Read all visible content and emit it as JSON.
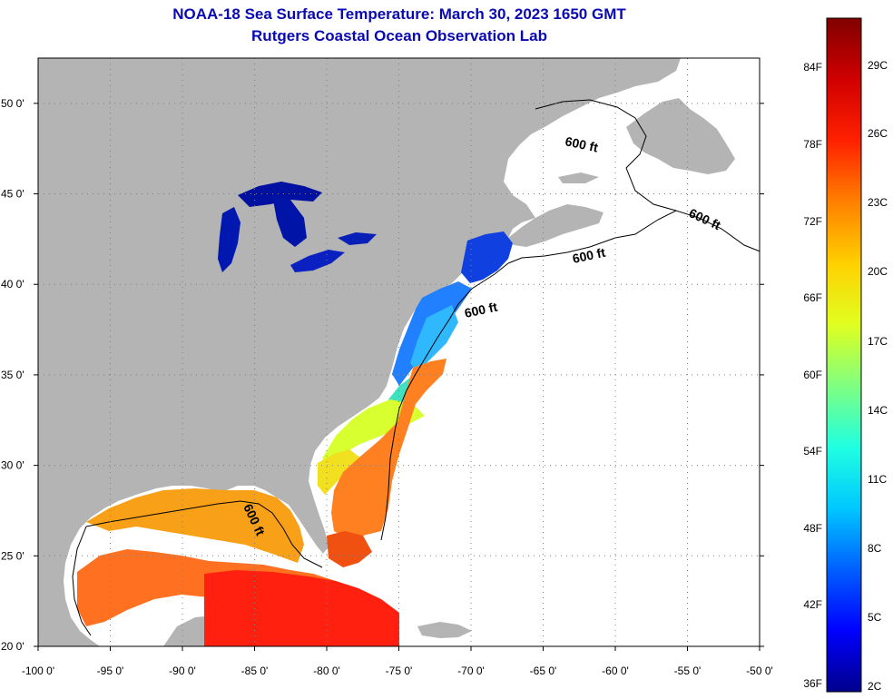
{
  "title": "NOAA-18 Sea Surface Temperature:  March 30, 2023 1650 GMT",
  "subtitle": "Rutgers Coastal Ocean Observation Lab",
  "map": {
    "lon_range": [
      -100,
      -50
    ],
    "lat_range": [
      20,
      52.5
    ],
    "lon_ticks": [
      {
        "value": -100,
        "label": "-100 0'"
      },
      {
        "value": -95,
        "label": "-95 0'"
      },
      {
        "value": -90,
        "label": "-90 0'"
      },
      {
        "value": -85,
        "label": "-85 0'"
      },
      {
        "value": -80,
        "label": "-80 0'"
      },
      {
        "value": -75,
        "label": "-75 0'"
      },
      {
        "value": -70,
        "label": "-70 0'"
      },
      {
        "value": -65,
        "label": "-65 0'"
      },
      {
        "value": -60,
        "label": "-60 0'"
      },
      {
        "value": -55,
        "label": "-55 0'"
      },
      {
        "value": -50,
        "label": "-50 0'"
      }
    ],
    "lat_ticks": [
      {
        "value": 20,
        "label": "20 0'"
      },
      {
        "value": 25,
        "label": "25 0'"
      },
      {
        "value": 30,
        "label": "30 0'"
      },
      {
        "value": 35,
        "label": "35 0'"
      },
      {
        "value": 40,
        "label": "40 0'"
      },
      {
        "value": 45,
        "label": "45 0'"
      },
      {
        "value": 50,
        "label": "50 0'"
      }
    ],
    "contour_labels": [
      "600 ft",
      "600 ft",
      "600 ft",
      "600 ft",
      "600 ft"
    ],
    "colors": {
      "land": "#b4b4b4",
      "ocean_no_data": "#ffffff",
      "grid": "#808080",
      "title": "#0a0ab4"
    }
  },
  "colorbar": {
    "fahrenheit_labels": [
      "84F",
      "78F",
      "72F",
      "66F",
      "60F",
      "54F",
      "48F",
      "42F",
      "36F"
    ],
    "celsius_labels": [
      "29C",
      "26C",
      "23C",
      "20C",
      "17C",
      "14C",
      "11C",
      "8C",
      "5C",
      "2C"
    ],
    "colormap": [
      "#00008c",
      "#0000ff",
      "#0060ff",
      "#00c8ff",
      "#20ffe0",
      "#80ff80",
      "#e0ff20",
      "#ffd000",
      "#ff8000",
      "#ff2000",
      "#d00000",
      "#800000"
    ]
  }
}
